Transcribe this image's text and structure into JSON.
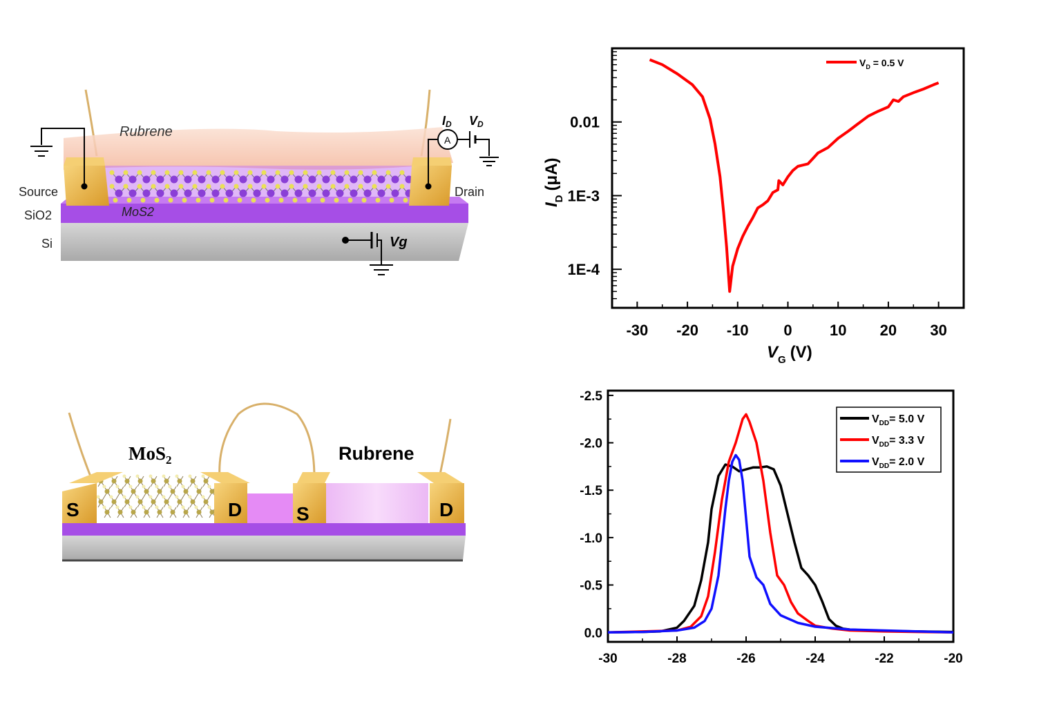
{
  "colors": {
    "gold": "#e3ad3c",
    "gold_light": "#f5cf73",
    "purple": "#a64ee6",
    "purple_light": "#d98ef7",
    "pink_film": "#f7c6b2",
    "silicon": "#c9c9c9",
    "mos2_atom": "#8a3fd6",
    "sulfur_atom": "#e9e055",
    "black": "#000000",
    "red": "#ff0000",
    "blue": "#1010ff"
  },
  "schematic_top": {
    "rubrene_label": "Rubrene",
    "source_label": "Source",
    "drain_label": "Drain",
    "sio2_label": "SiO2",
    "si_label": "Si",
    "mos2_label": "MoS2",
    "ammeter_label": "A",
    "id_label": "I",
    "id_sub": "D",
    "vd_label": "V",
    "vd_sub": "D",
    "vg_label": "Vg"
  },
  "schematic_bottom": {
    "mos2_label": "MoS",
    "mos2_sub": "2",
    "rubrene_label": "Rubrene",
    "s_left": "S",
    "d_left": "D",
    "s_right": "S",
    "d_right": "D"
  },
  "chart_data": [
    {
      "type": "line",
      "yscale": "log",
      "xlabel": "V",
      "xlabel_sub": "G",
      "xlabel_unit": "(V)",
      "ylabel": "I",
      "ylabel_sub": "D",
      "ylabel_unit": "(μA)",
      "xlim": [
        -35,
        35
      ],
      "ylim": [
        3e-05,
        0.1
      ],
      "xticks": [
        -30,
        -20,
        -10,
        0,
        10,
        20,
        30
      ],
      "xtick_labels": [
        "-30",
        "-20",
        "-10",
        "0",
        "10",
        "20",
        "30"
      ],
      "yticks": [
        0.01,
        0.001,
        0.0001
      ],
      "ytick_labels": [
        "0.01",
        "1E-3",
        "1E-4"
      ],
      "legend_position": "top-right",
      "series": [
        {
          "name": "V",
          "name_sub": "D",
          "name_rest": " = 0.5 V",
          "color": "#ff0000",
          "x": [
            -27.5,
            -25,
            -22,
            -19,
            -17,
            -15.5,
            -14.5,
            -13.5,
            -12.8,
            -12.2,
            -11.8,
            -11.6,
            -11,
            -10,
            -9,
            -8,
            -7,
            -6,
            -5,
            -4,
            -3,
            -2,
            -1.8,
            -1,
            0,
            1,
            2,
            3,
            4,
            5,
            6,
            8,
            10,
            12,
            14,
            16,
            18,
            20,
            21,
            22,
            23,
            25,
            27,
            29,
            30
          ],
          "y": [
            0.07,
            0.06,
            0.045,
            0.032,
            0.022,
            0.011,
            0.005,
            0.0018,
            0.0006,
            0.0002,
            8e-05,
            5e-05,
            0.00011,
            0.00019,
            0.00028,
            0.00038,
            0.0005,
            0.00068,
            0.00075,
            0.00085,
            0.0011,
            0.0012,
            0.0016,
            0.0014,
            0.0018,
            0.0022,
            0.0025,
            0.0026,
            0.0027,
            0.0032,
            0.0038,
            0.0045,
            0.006,
            0.0075,
            0.0095,
            0.012,
            0.014,
            0.016,
            0.02,
            0.019,
            0.022,
            0.025,
            0.028,
            0.032,
            0.034
          ]
        }
      ]
    },
    {
      "type": "line",
      "xlabel": "",
      "ylabel": "",
      "xlim": [
        -30,
        -20
      ],
      "ylim": [
        0.1,
        -2.55
      ],
      "xticks": [
        -30,
        -28,
        -26,
        -24,
        -22,
        -20
      ],
      "xtick_labels": [
        "-30",
        "-28",
        "-26",
        "-24",
        "-22",
        "-20"
      ],
      "yticks": [
        -2.5,
        -2.0,
        -1.5,
        -1.0,
        -0.5,
        0.0
      ],
      "ytick_labels": [
        "-2.5",
        "-2.0",
        "-1.5",
        "-1.0",
        "-0.5",
        "0.0"
      ],
      "legend_position": "top-right",
      "series": [
        {
          "name": "V",
          "name_sub": "DD",
          "name_rest": "= 5.0 V",
          "color": "#000000",
          "x": [
            -30,
            -29,
            -28.5,
            -28,
            -27.8,
            -27.5,
            -27.3,
            -27.1,
            -27,
            -26.8,
            -26.6,
            -26.4,
            -26.2,
            -26,
            -25.8,
            -25.6,
            -25.4,
            -25.2,
            -25,
            -24.8,
            -24.6,
            -24.4,
            -24.2,
            -24,
            -23.8,
            -23.6,
            -23.4,
            -23.2,
            -23,
            -22.5,
            -22,
            -21,
            -20
          ],
          "y": [
            0,
            -0.005,
            -0.01,
            -0.05,
            -0.12,
            -0.28,
            -0.55,
            -0.95,
            -1.3,
            -1.65,
            -1.77,
            -1.75,
            -1.7,
            -1.72,
            -1.74,
            -1.74,
            -1.75,
            -1.72,
            -1.55,
            -1.25,
            -0.95,
            -0.68,
            -0.6,
            -0.5,
            -0.33,
            -0.14,
            -0.07,
            -0.04,
            -0.03,
            -0.02,
            -0.015,
            -0.01,
            -0.005
          ]
        },
        {
          "name": "V",
          "name_sub": "DD",
          "name_rest": "= 3.3 V",
          "color": "#ff0000",
          "x": [
            -30,
            -29,
            -28,
            -27.6,
            -27.3,
            -27.1,
            -26.9,
            -26.7,
            -26.5,
            -26.3,
            -26.1,
            -26,
            -25.9,
            -25.7,
            -25.5,
            -25.3,
            -25.1,
            -24.9,
            -24.7,
            -24.5,
            -24.2,
            -24,
            -23.5,
            -23,
            -22,
            -21,
            -20
          ],
          "y": [
            0,
            -0.01,
            -0.02,
            -0.06,
            -0.17,
            -0.38,
            -0.85,
            -1.4,
            -1.8,
            -2.0,
            -2.25,
            -2.3,
            -2.22,
            -2.0,
            -1.6,
            -1.05,
            -0.6,
            -0.5,
            -0.32,
            -0.2,
            -0.12,
            -0.07,
            -0.04,
            -0.02,
            -0.01,
            -0.005,
            0
          ]
        },
        {
          "name": "V",
          "name_sub": "DD",
          "name_rest": "= 2.0 V",
          "color": "#1010ff",
          "x": [
            -30,
            -29,
            -28,
            -27.5,
            -27.2,
            -27,
            -26.8,
            -26.6,
            -26.5,
            -26.4,
            -26.3,
            -26.2,
            -26.1,
            -26,
            -25.9,
            -25.7,
            -25.5,
            -25.3,
            -25,
            -24.5,
            -24,
            -23,
            -22,
            -21,
            -20
          ],
          "y": [
            0,
            -0.005,
            -0.02,
            -0.05,
            -0.12,
            -0.25,
            -0.6,
            -1.3,
            -1.6,
            -1.8,
            -1.87,
            -1.82,
            -1.6,
            -1.2,
            -0.8,
            -0.58,
            -0.5,
            -0.3,
            -0.18,
            -0.1,
            -0.06,
            -0.03,
            -0.02,
            -0.01,
            0
          ]
        }
      ]
    }
  ]
}
